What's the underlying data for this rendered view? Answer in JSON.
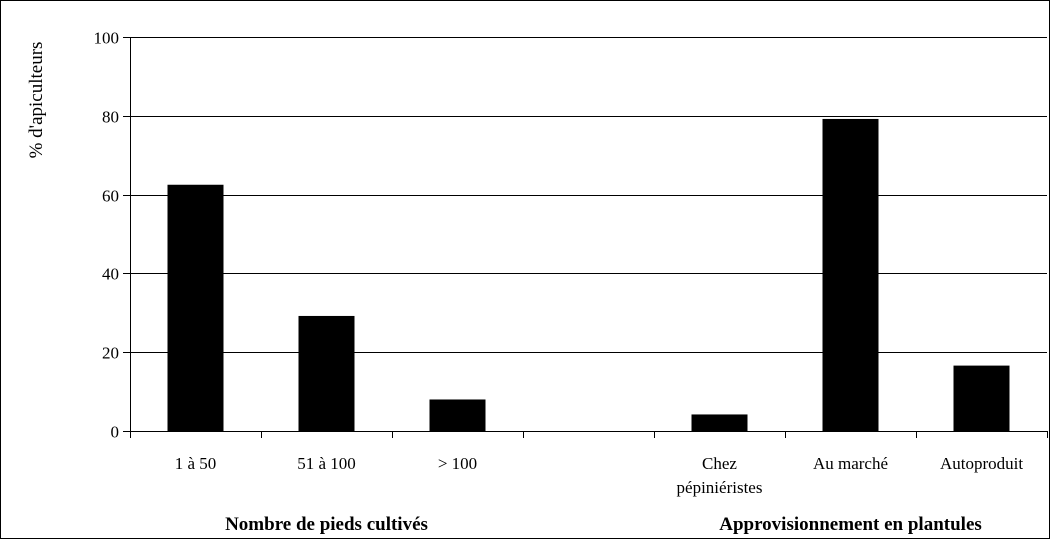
{
  "chart_data": {
    "type": "bar",
    "title": "",
    "ylabel": "% d'apiculteurs",
    "ylim": [
      0,
      100
    ],
    "yticks": [
      0,
      20,
      40,
      60,
      80,
      100
    ],
    "grid": true,
    "bar_color": "#000000",
    "categories": [
      "1 à 50",
      "51 à 100",
      "> 100",
      "",
      "Chez pépiniéristes",
      "Au marché",
      "Autoproduit"
    ],
    "category_lines": [
      [
        "1 à 50"
      ],
      [
        "51 à 100"
      ],
      [
        "> 100"
      ],
      [],
      [
        "Chez",
        "pépiniéristes"
      ],
      [
        "Au marché"
      ],
      [
        "Autoproduit"
      ]
    ],
    "values": [
      62.5,
      29.2,
      8.0,
      null,
      4.2,
      79.2,
      16.6
    ],
    "groups": [
      {
        "label": "Nombre de pieds cultivés",
        "categories": [
          "1 à 50",
          "51 à 100",
          "> 100"
        ]
      },
      {
        "label": "Approvisionnement en plantules",
        "categories": [
          "Chez pépiniéristes",
          "Au marché",
          "Autoproduit"
        ]
      }
    ]
  }
}
